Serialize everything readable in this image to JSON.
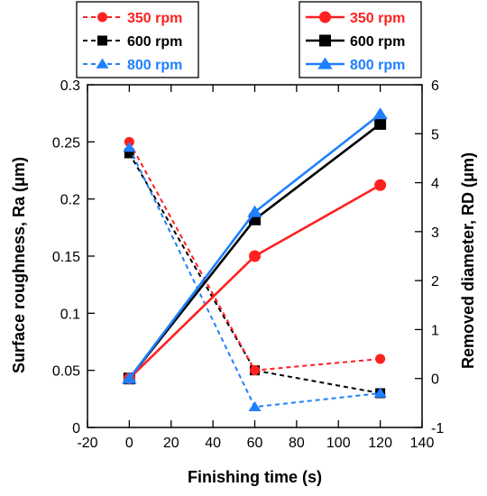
{
  "chart_data": {
    "type": "line",
    "xlabel": "Finishing time (s)",
    "ylabel_left": "Surface roughness, Ra (μm)",
    "ylabel_right": "Removed diameter, RD (μm)",
    "x_ticks": [
      -20,
      0,
      20,
      40,
      60,
      80,
      100,
      120,
      140
    ],
    "xlim": [
      -20,
      140
    ],
    "y_left_ticks": [
      "0",
      "0.05",
      "0.1",
      "0.15",
      "0.2",
      "0.25",
      "0.3"
    ],
    "ylim_left": [
      0,
      0.3
    ],
    "y_right_ticks": [
      "-1",
      "0",
      "1",
      "2",
      "3",
      "4",
      "5",
      "6"
    ],
    "ylim_right": [
      -1,
      6
    ],
    "grid": false,
    "legend_left_position": "top-left",
    "legend_right_position": "top-right",
    "series": [
      {
        "name": "350 rpm",
        "axis": "left",
        "style": "dashed",
        "marker": "circle",
        "color": "#ff2020",
        "x": [
          0,
          60,
          120
        ],
        "y": [
          0.25,
          0.05,
          0.06
        ]
      },
      {
        "name": "600 rpm",
        "axis": "left",
        "style": "dashed",
        "marker": "square",
        "color": "#000000",
        "x": [
          0,
          60,
          120
        ],
        "y": [
          0.24,
          0.05,
          0.03
        ]
      },
      {
        "name": "800 rpm",
        "axis": "left",
        "style": "dashed",
        "marker": "triangle",
        "color": "#1f7fff",
        "x": [
          0,
          60,
          120
        ],
        "y": [
          0.245,
          0.018,
          0.03
        ]
      },
      {
        "name": "350 rpm",
        "axis": "right",
        "style": "solid",
        "marker": "circle",
        "color": "#ff2020",
        "x": [
          0,
          60,
          120
        ],
        "y": [
          0.0,
          2.5,
          3.95
        ]
      },
      {
        "name": "600 rpm",
        "axis": "right",
        "style": "solid",
        "marker": "square",
        "color": "#000000",
        "x": [
          0,
          60,
          120
        ],
        "y": [
          0.0,
          3.25,
          5.2
        ]
      },
      {
        "name": "800 rpm",
        "axis": "right",
        "style": "solid",
        "marker": "triangle",
        "color": "#1f7fff",
        "x": [
          0,
          60,
          120
        ],
        "y": [
          0.0,
          3.4,
          5.4
        ]
      }
    ]
  }
}
